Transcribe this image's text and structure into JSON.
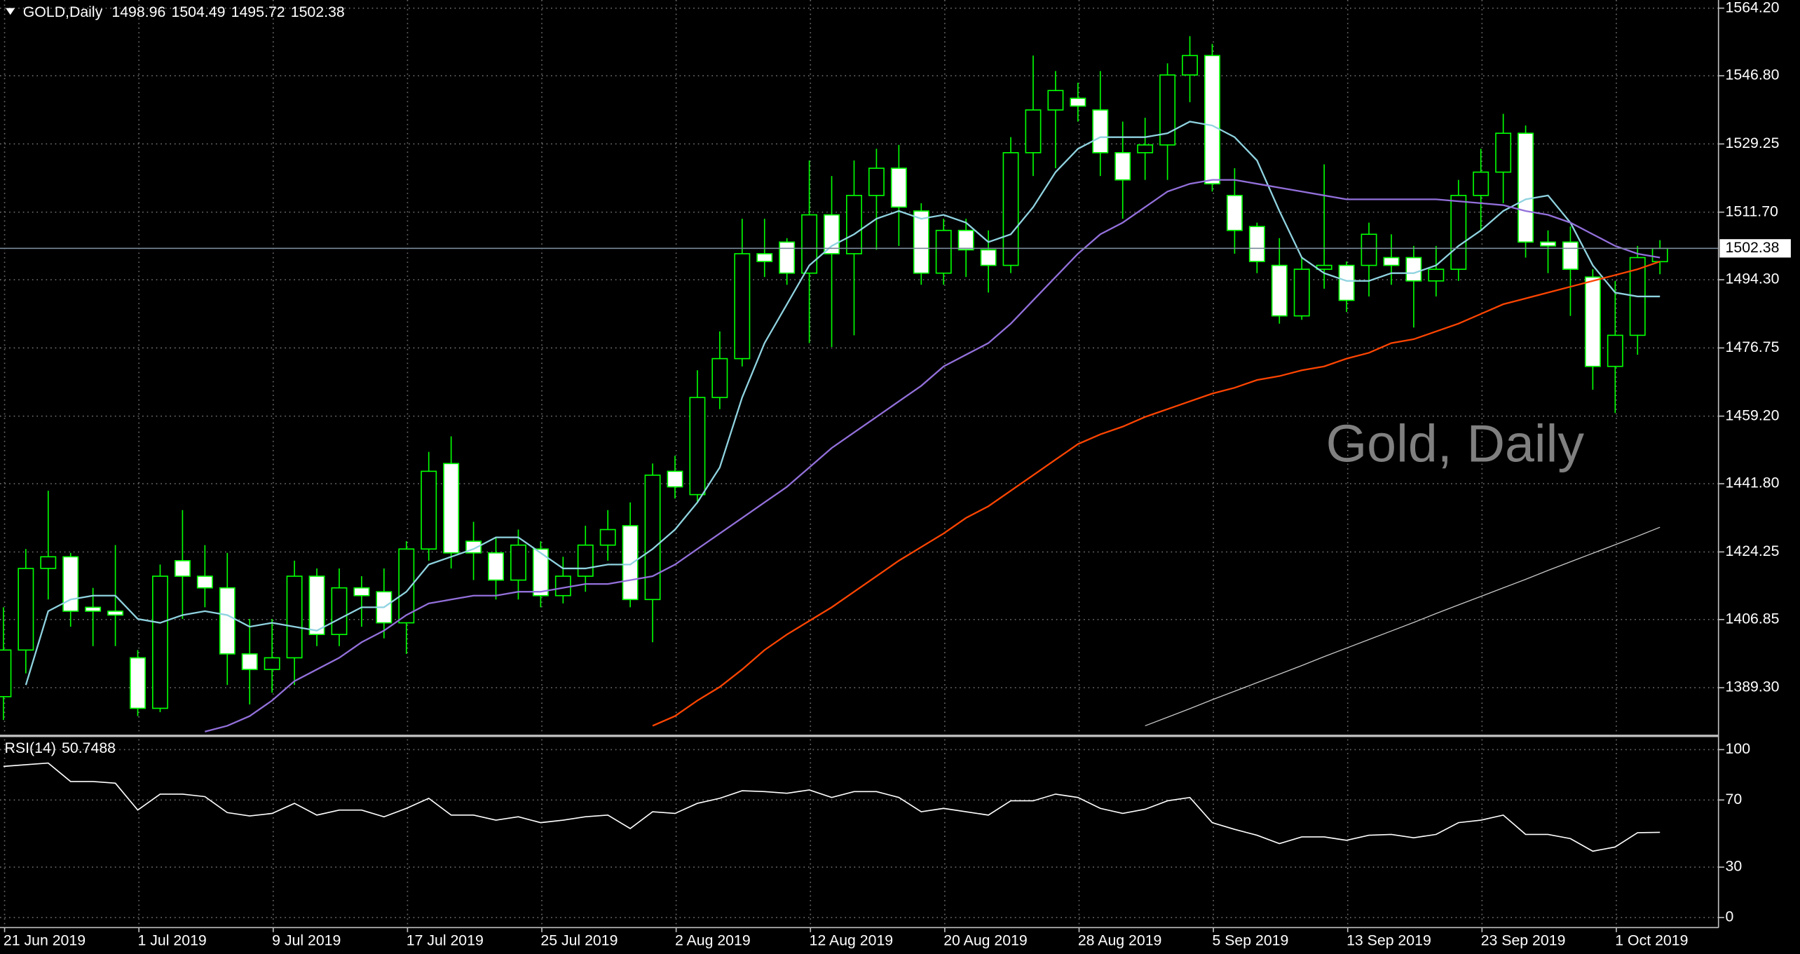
{
  "chart_data": [
    {
      "type": "candlestick",
      "symbol": "GOLD,Daily",
      "watermark": "Gold, Daily",
      "categories": [
        "21 Jun 2019",
        null,
        null,
        null,
        null,
        null,
        "1 Jul 2019",
        null,
        null,
        null,
        null,
        null,
        "9 Jul 2019",
        null,
        null,
        null,
        null,
        null,
        "17 Jul 2019",
        null,
        null,
        null,
        null,
        null,
        "25 Jul 2019",
        null,
        null,
        null,
        null,
        null,
        "2 Aug 2019",
        null,
        null,
        null,
        null,
        null,
        "12 Aug 2019",
        null,
        null,
        null,
        null,
        null,
        "20 Aug 2019",
        null,
        null,
        null,
        null,
        null,
        "28 Aug 2019",
        null,
        null,
        null,
        null,
        null,
        "5 Sep 2019",
        null,
        null,
        null,
        null,
        null,
        "13 Sep 2019",
        null,
        null,
        null,
        null,
        null,
        "23 Sep 2019",
        null,
        null,
        null,
        null,
        null,
        "1 Oct 2019",
        null,
        null
      ],
      "open": [
        1387,
        1399,
        1420,
        1423,
        1410,
        1409,
        1397,
        1384,
        1422,
        1418,
        1415,
        1398,
        1394,
        1397,
        1418,
        1403,
        1415,
        1414,
        1406,
        1425,
        1447,
        1427,
        1424,
        1417,
        1425,
        1413,
        1418,
        1426,
        1431,
        1412,
        1445,
        1439,
        1464,
        1474,
        1501,
        1504,
        1496,
        1511,
        1501,
        1516,
        1523,
        1512,
        1496,
        1507,
        1502,
        1498,
        1527,
        1538,
        1541,
        1538,
        1527,
        1527,
        1529,
        1547,
        1552,
        1516,
        1508,
        1498,
        1485,
        1497,
        1498,
        1498,
        1500,
        1500,
        1494,
        1497,
        1516,
        1522,
        1532,
        1504,
        1504,
        1495,
        1472,
        1480,
        1498.96
      ],
      "high": [
        1410,
        1425,
        1440,
        1424,
        1415,
        1426,
        1399,
        1421,
        1435,
        1426,
        1424,
        1407,
        1407,
        1422,
        1420,
        1420,
        1418,
        1420,
        1427,
        1450,
        1454,
        1432,
        1428,
        1430,
        1427,
        1423,
        1431,
        1435,
        1437,
        1447,
        1449,
        1471,
        1481,
        1510,
        1510,
        1505,
        1525,
        1521,
        1525,
        1528,
        1529,
        1514,
        1510,
        1510,
        1507,
        1531,
        1552,
        1548,
        1545,
        1548,
        1535,
        1536,
        1550,
        1557,
        1555,
        1523,
        1509,
        1505,
        1500,
        1524,
        1499,
        1509,
        1506,
        1503,
        1503,
        1520,
        1528,
        1537,
        1534,
        1507,
        1508,
        1497,
        1494,
        1503,
        1504.49
      ],
      "low": [
        1381,
        1393,
        1412,
        1405,
        1400,
        1400,
        1382,
        1383,
        1407,
        1410,
        1390,
        1385,
        1388,
        1390,
        1400,
        1400,
        1405,
        1402,
        1398,
        1422,
        1420,
        1417,
        1412,
        1412,
        1410,
        1411,
        1414,
        1422,
        1410,
        1401,
        1438,
        1437,
        1461,
        1472,
        1495,
        1493,
        1478,
        1477,
        1480,
        1502,
        1503,
        1493,
        1493,
        1495,
        1491,
        1496,
        1521,
        1523,
        1535,
        1521,
        1510,
        1520,
        1520,
        1540,
        1517,
        1501,
        1496,
        1483,
        1484,
        1492,
        1486,
        1490,
        1493,
        1482,
        1490,
        1494,
        1507,
        1514,
        1500,
        1496,
        1485,
        1466,
        1460,
        1475,
        1495.72
      ],
      "close": [
        1399,
        1420,
        1423,
        1409,
        1409,
        1408,
        1384,
        1418,
        1418,
        1415,
        1398,
        1394,
        1397,
        1418,
        1403,
        1415,
        1413,
        1406,
        1425,
        1445,
        1424,
        1424,
        1417,
        1426,
        1413,
        1418,
        1426,
        1430,
        1412,
        1444,
        1441,
        1464,
        1474,
        1501,
        1499,
        1496,
        1511,
        1501,
        1516,
        1523,
        1513,
        1496,
        1507,
        1502,
        1498,
        1527,
        1538,
        1543,
        1539,
        1527,
        1520,
        1529,
        1547,
        1552,
        1519,
        1507,
        1499,
        1485,
        1497,
        1498,
        1489,
        1506,
        1498,
        1494,
        1497,
        1516,
        1522,
        1532,
        1504,
        1503,
        1497,
        1472,
        1480,
        1500,
        1502.38
      ],
      "bull_color": "#000000",
      "bear_color": "#ffffff",
      "wick_color": "#00ff00",
      "overlays": [
        {
          "color": "#8fd3e0",
          "values": [
            null,
            1390,
            1409,
            1412,
            1413,
            1413,
            1407,
            1406,
            1408,
            1409,
            1408,
            1405,
            1406,
            1405,
            1404,
            1407,
            1410,
            1410,
            1414,
            1421,
            1423,
            1425,
            1428,
            1428,
            1424,
            1420,
            1420,
            1421,
            1421,
            1425,
            1430,
            1437,
            1446,
            1464,
            1478,
            1488,
            1498,
            1503,
            1506,
            1510,
            1512,
            1510,
            1511,
            1509,
            1504,
            1506,
            1513,
            1522,
            1528,
            1531,
            1531,
            1531,
            1532,
            1535,
            1534,
            1531,
            1525,
            1512,
            1500,
            1496,
            1494,
            1494,
            1496,
            1496,
            1498,
            1503,
            1507,
            1512,
            1515,
            1516,
            1509,
            1498,
            1491,
            1490,
            1490
          ]
        },
        {
          "color": "#9370db",
          "values": [
            null,
            null,
            null,
            null,
            null,
            null,
            null,
            null,
            null,
            1378,
            1379.5,
            1382,
            1386,
            1391,
            1394,
            1397,
            1401,
            1404,
            1408,
            1411,
            1412,
            1413,
            1413,
            1414,
            1414,
            1415,
            1416,
            1416,
            1417,
            1418,
            1421,
            1425,
            1429,
            1433,
            1437,
            1441,
            1446,
            1451,
            1455,
            1459,
            1463,
            1467,
            1472,
            1475,
            1478,
            1483,
            1489,
            1495,
            1501,
            1506,
            1509,
            1513,
            1517,
            1519,
            1520,
            1520,
            1519,
            1518,
            1517,
            1516,
            1515,
            1515,
            1515,
            1515,
            1515,
            1514.5,
            1514,
            1513.5,
            1512,
            1511,
            1509,
            1506,
            1503,
            1501,
            1500
          ]
        },
        {
          "color": "#ff4500",
          "values": [
            null,
            null,
            null,
            null,
            null,
            null,
            null,
            null,
            null,
            null,
            null,
            null,
            null,
            null,
            null,
            null,
            null,
            null,
            null,
            null,
            null,
            null,
            null,
            null,
            null,
            null,
            null,
            null,
            null,
            1379.5,
            1382,
            1386,
            1389.5,
            1394,
            1399,
            1403,
            1406.5,
            1410,
            1414,
            1418,
            1422,
            1425.5,
            1429,
            1433,
            1436,
            1440,
            1444,
            1448,
            1452,
            1454.5,
            1456.5,
            1459,
            1461,
            1463,
            1465,
            1466.5,
            1468.5,
            1469.5,
            1471,
            1472,
            1474,
            1475.5,
            1478,
            1479,
            1481,
            1483,
            1485.5,
            1488,
            1489.5,
            1491,
            1492.5,
            1494,
            1495.5,
            1497,
            1499
          ]
        },
        {
          "color": "#c8c8c8",
          "values": [
            null,
            null,
            null,
            null,
            null,
            null,
            null,
            null,
            null,
            null,
            null,
            null,
            null,
            null,
            null,
            null,
            null,
            null,
            null,
            null,
            null,
            null,
            null,
            null,
            null,
            null,
            null,
            null,
            null,
            null,
            null,
            null,
            null,
            null,
            null,
            null,
            null,
            null,
            null,
            null,
            null,
            null,
            null,
            null,
            null,
            null,
            null,
            null,
            null,
            null,
            null,
            1379.5,
            1381.7,
            1383.9,
            1386.2,
            1388.4,
            1390.6,
            1392.8,
            1395.0,
            1397.3,
            1399.5,
            1401.7,
            1403.9,
            1406.1,
            1408.4,
            1410.6,
            1412.8,
            1415.0,
            1417.2,
            1419.5,
            1421.7,
            1423.9,
            1426.1,
            1428.3,
            1430.6
          ]
        }
      ],
      "ylim": [
        1377.2,
        1566.3
      ],
      "yticks": [
        {
          "value": 1564.2,
          "label": "1564.20"
        },
        {
          "value": 1546.8,
          "label": "1546.80"
        },
        {
          "value": 1529.25,
          "label": "1529.25"
        },
        {
          "value": 1511.7,
          "label": "1511.70"
        },
        {
          "value": 1494.3,
          "label": "1494.30"
        },
        {
          "value": 1476.75,
          "label": "1476.75"
        },
        {
          "value": 1459.2,
          "label": "1459.20"
        },
        {
          "value": 1441.8,
          "label": "1441.80"
        },
        {
          "value": 1424.25,
          "label": "1424.25"
        },
        {
          "value": 1406.85,
          "label": "1406.85"
        },
        {
          "value": 1389.3,
          "label": "1389.30"
        }
      ],
      "grid": true,
      "last_price_line": true
    },
    {
      "type": "line",
      "name": "RSI(14)",
      "color": "#ffffff",
      "values": [
        90,
        91,
        92,
        81,
        81,
        80,
        64,
        73.5,
        73.5,
        72,
        62.5,
        60.5,
        62,
        68,
        61,
        64,
        64,
        60,
        65,
        71,
        61,
        61,
        58,
        60,
        56.5,
        58,
        60,
        61,
        53,
        63,
        62,
        68,
        71,
        75.5,
        75,
        74,
        76,
        71.5,
        75,
        75,
        71.5,
        63,
        65,
        63,
        61,
        69.5,
        69.5,
        73.5,
        71.5,
        65,
        62,
        64.5,
        69.5,
        71.5,
        56.5,
        52.5,
        49,
        44,
        48,
        48,
        46,
        49,
        49.5,
        47.5,
        49.5,
        56.5,
        58,
        61,
        49.5,
        49.5,
        47,
        39.5,
        42,
        50.5,
        50.7488
      ],
      "ylim": [
        -6,
        107.5
      ],
      "yticks": [
        100,
        70,
        30,
        0
      ],
      "grid": true
    }
  ]
}
